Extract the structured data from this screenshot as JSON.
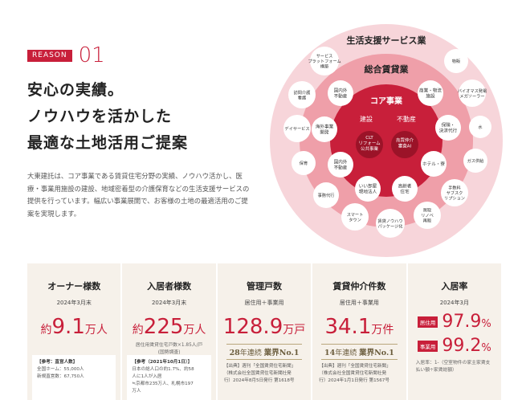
{
  "reason": {
    "badge": "REASON",
    "number": "01"
  },
  "headline": {
    "line1": "安心の実績。",
    "line2": "ノウハウを活かした",
    "line3": "最適な土地活用ご提案"
  },
  "description": "大東建託は、コア事業である賃貸住宅分野の実績、ノウハウ活かし、医療・事業用施設の建設、地域密着型の介護保育などの生活支援サービスの提供を行っています。幅広い事業展開で、お客様の土地の最適活用のご提案を実現します。",
  "diagram": {
    "outer_title": "生活支援サービス業",
    "middle_title": "総合賃貸業",
    "core_title": "コア事業",
    "core_left": "建設",
    "core_right": "不動産",
    "core_circle_left": [
      "CLT",
      "リフォーム",
      "公共事業"
    ],
    "core_circle_right": [
      "売買仲介",
      "審査AI"
    ],
    "middle_items": {
      "top_left": [
        "国内外",
        "不動産"
      ],
      "left1": [
        "海外事業",
        "開発"
      ],
      "left2": [
        "国内外",
        "不動産"
      ],
      "bottom_left": [
        "いい部屋",
        "現地法人"
      ],
      "bottom_right": [
        "高齢者",
        "住宅"
      ],
      "top_right": [
        "商業・物流",
        "施設"
      ],
      "right1": [
        "保険・",
        "決済代行"
      ],
      "right2": [
        "ホテル・寮"
      ]
    },
    "outer_items": {
      "service_platform": [
        "サービス",
        "プラットフォーム",
        "構築"
      ],
      "visiting_care": [
        "訪問介護",
        "看護"
      ],
      "day_service": [
        "デイサービス"
      ],
      "nursery": [
        "保育"
      ],
      "agency": [
        "事務代行"
      ],
      "smart_town": [
        "スマート",
        "タウン"
      ],
      "know_how_pkg": [
        "賃貸ノウハウ",
        "パッケージ化"
      ],
      "buy_renovate": [
        "買取",
        "リノベ",
        "再販"
      ],
      "boiler_supply": [
        "手数料",
        "サブスク",
        "リプション"
      ],
      "gas": [
        "ガス供給"
      ],
      "water": [
        "水"
      ],
      "biomass": [
        "バイオマス発電",
        "メガソーラー"
      ],
      "goods": [
        "物販"
      ]
    }
  },
  "stats": [
    {
      "title": "オーナー様数",
      "sub": "2024年3月末",
      "pre": "約",
      "value": "9.1",
      "unit": "万人",
      "ref_head": "【参考：直営人数】",
      "ref_lines": [
        "全国ホーム：55,000人",
        "新規直営数：67,750人"
      ]
    },
    {
      "title": "入居者様数",
      "sub": "2024年3月末",
      "pre": "約",
      "value": "225",
      "unit": "万人",
      "note": [
        "居住用賃貸住宅戸数×1.85人/戸",
        "(国勢調査)"
      ],
      "ref_head": "【参考（2021年10月1日）】",
      "ref_lines": [
        "日本の総人口の約1.7%、約58",
        "人に1人が入居",
        "≒京都市235万人、札幌市197",
        "万人"
      ]
    },
    {
      "title": "管理戸数",
      "sub": "居住用＋事業用",
      "value": "128.9",
      "unit": "万戸",
      "ribbon_years": "28",
      "ribbon_text1": "年連続",
      "ribbon_text2": "業界No.1",
      "ref_lines": [
        "【出典】週刊「全国賃貸住宅新聞」",
        "（株式会社全国賃貸住宅新聞社発",
        "行）2024年8月5日発行 第1618号"
      ]
    },
    {
      "title": "賃貸仲介件数",
      "sub": "居住用＋事業用",
      "value": "34.1",
      "unit": "万件",
      "ribbon_years": "14",
      "ribbon_text1": "年連続",
      "ribbon_text2": "業界No.1",
      "ref_lines": [
        "【出典】週刊「全国賃貸住宅新聞」",
        "（株式会社全国賃貸住宅新聞社発",
        "行）2024年1月1日発行 第1567号"
      ]
    },
    {
      "title": "入居率",
      "sub": "2024年3月",
      "rates": [
        {
          "tag": "居住用",
          "value": "97.9",
          "unit": "%"
        },
        {
          "tag": "事業用",
          "value": "99.2",
          "unit": "%"
        }
      ],
      "note": [
        "入居率：1-（空室物件の家主家賃支",
        "払い額÷家賃総額）"
      ]
    }
  ],
  "colors": {
    "accent": "#c81f3a",
    "panel": "#f6f1ea"
  }
}
